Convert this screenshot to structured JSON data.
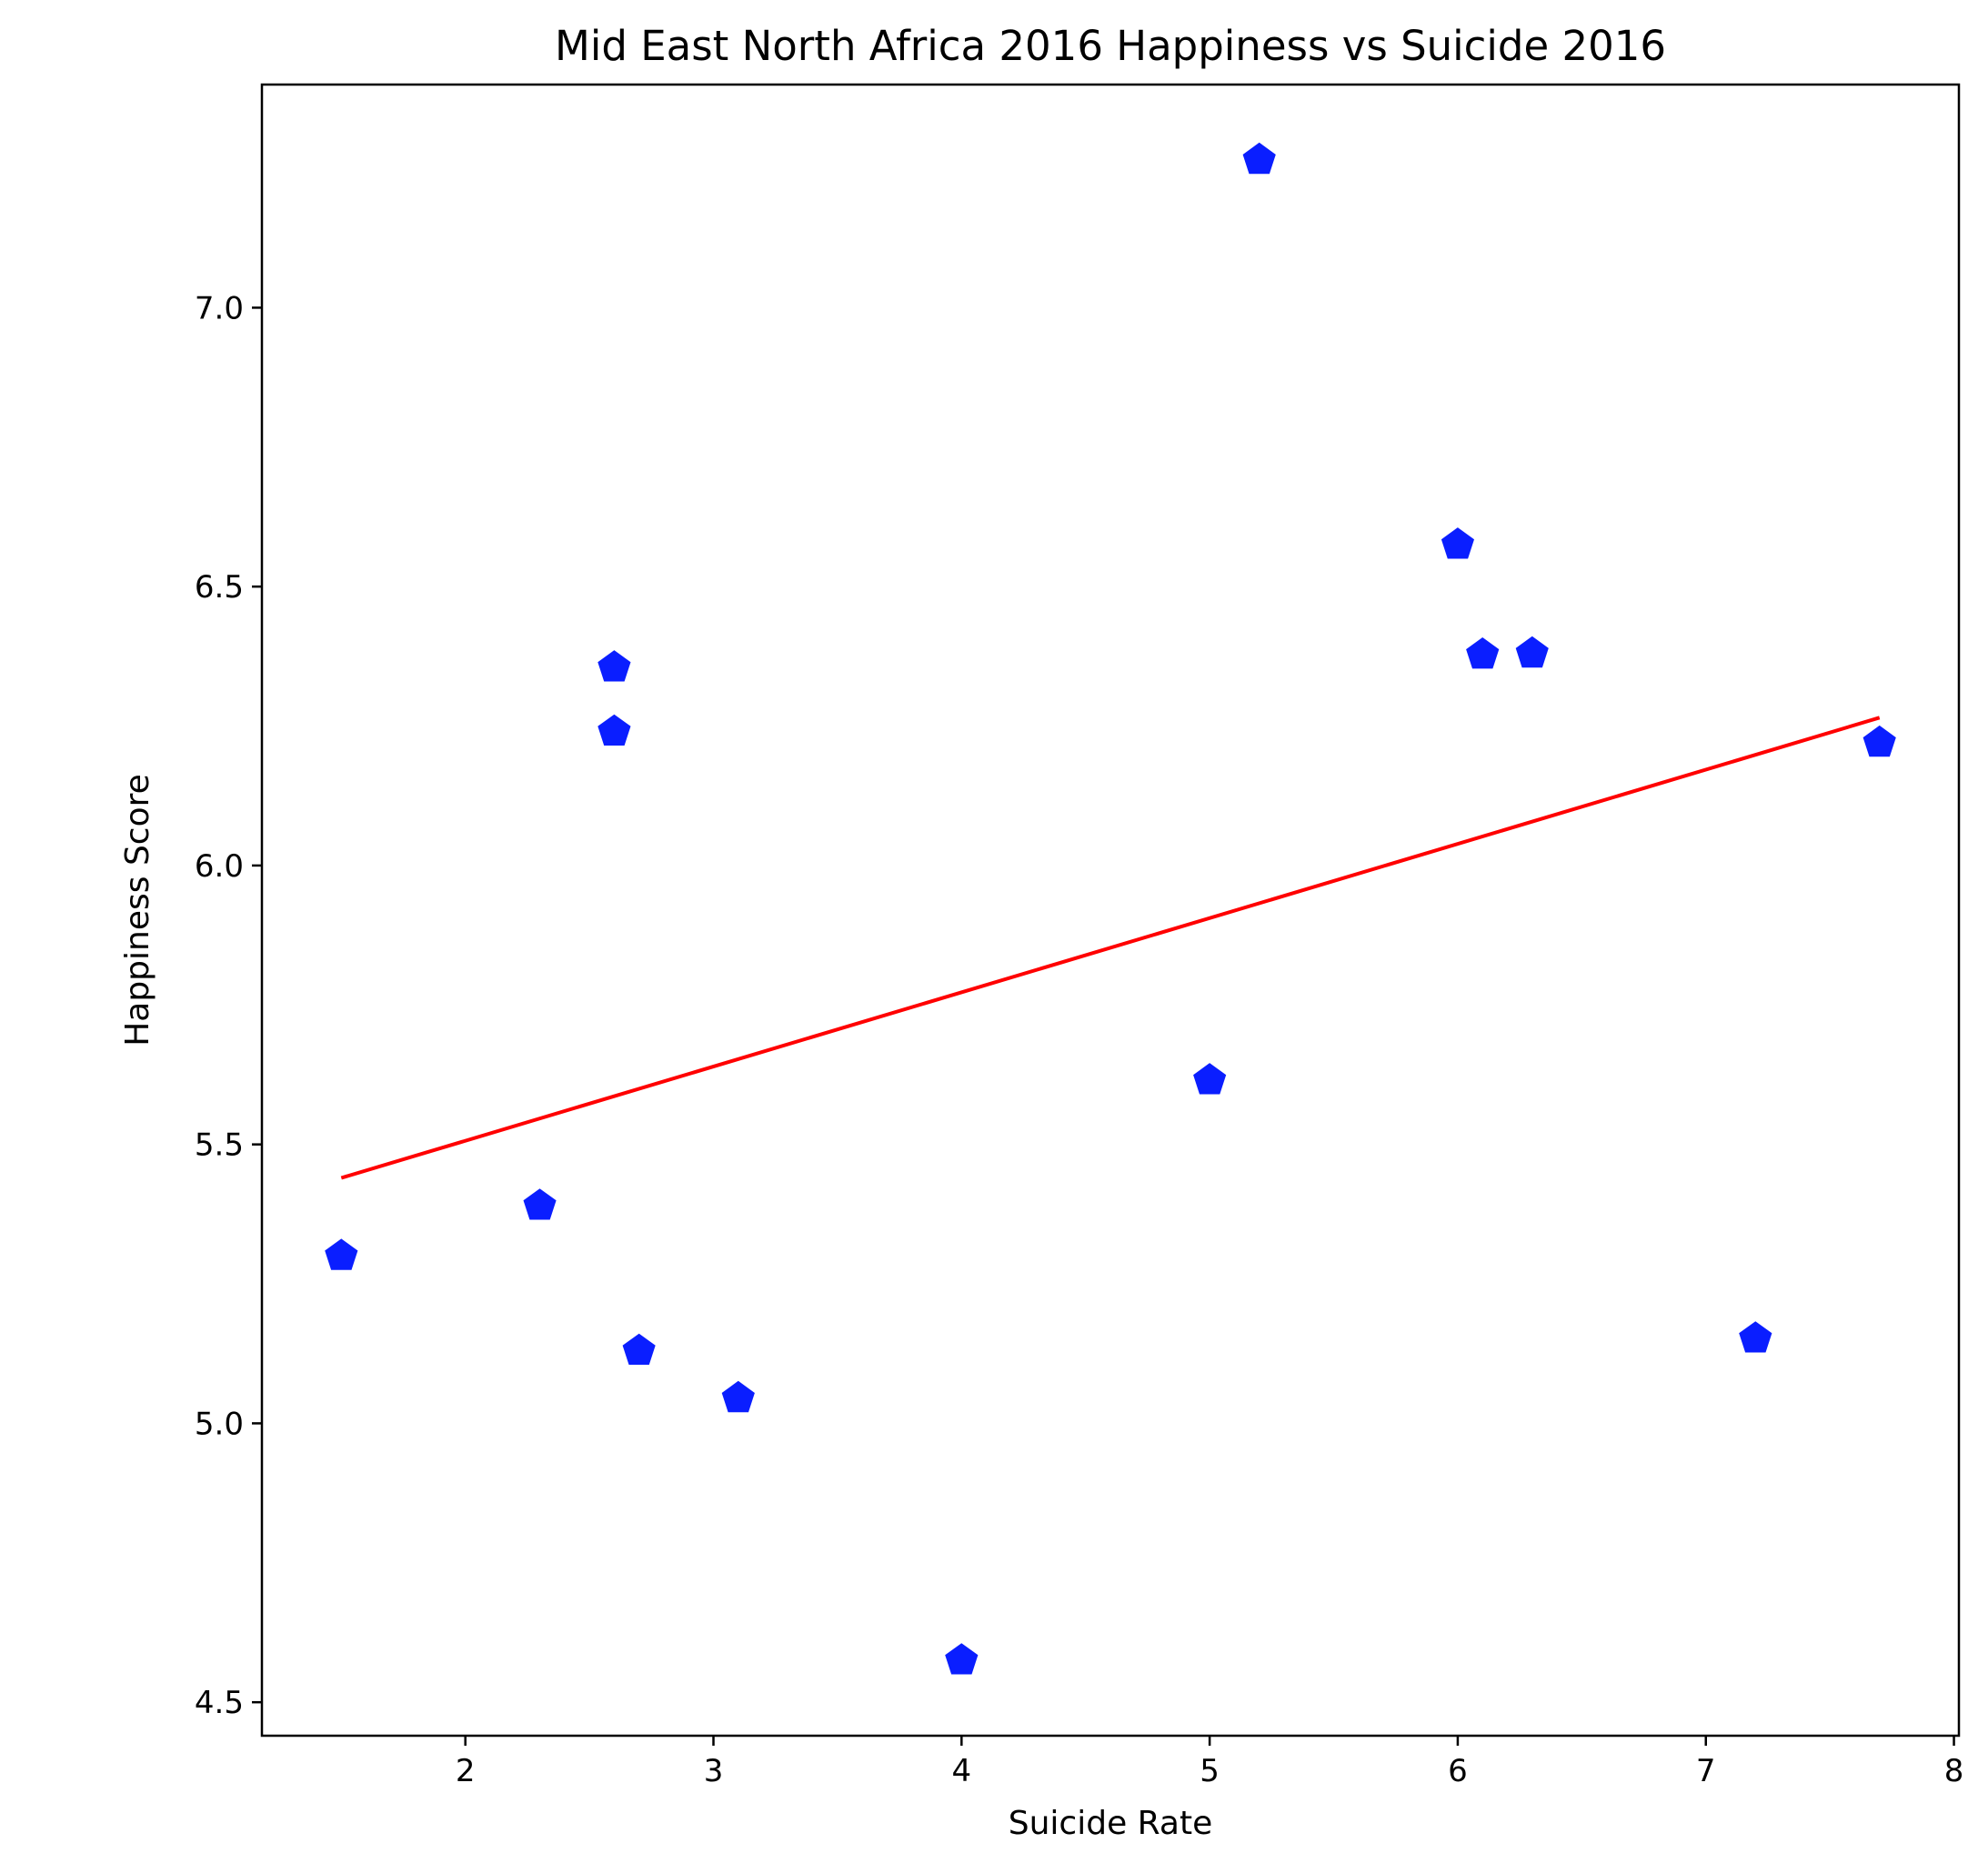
{
  "chart_data": {
    "type": "scatter",
    "title": "Mid East North Africa 2016 Happiness vs Suicide 2016",
    "xlabel": "Suicide Rate",
    "ylabel": "Happiness Score",
    "xlim": [
      1.18,
      8.02
    ],
    "ylim": [
      4.44,
      7.4
    ],
    "x_ticks": [
      2,
      3,
      4,
      5,
      6,
      7,
      8
    ],
    "y_ticks": [
      4.5,
      5.0,
      5.5,
      6.0,
      6.5,
      7.0
    ],
    "x_tick_labels": [
      "2",
      "3",
      "4",
      "5",
      "6",
      "7",
      "8"
    ],
    "y_tick_labels": [
      "4.5",
      "5.0",
      "5.5",
      "6.0",
      "6.5",
      "7.0"
    ],
    "grid": false,
    "series": [
      {
        "marker": "pentagon",
        "color": "#0a1eff",
        "points": [
          {
            "x": 1.5,
            "y": 5.3
          },
          {
            "x": 2.3,
            "y": 5.39
          },
          {
            "x": 2.6,
            "y": 6.355
          },
          {
            "x": 2.6,
            "y": 6.24
          },
          {
            "x": 2.7,
            "y": 5.13
          },
          {
            "x": 3.1,
            "y": 5.045
          },
          {
            "x": 4.0,
            "y": 4.575
          },
          {
            "x": 5.0,
            "y": 5.615
          },
          {
            "x": 5.2,
            "y": 7.265
          },
          {
            "x": 6.0,
            "y": 6.575
          },
          {
            "x": 6.1,
            "y": 6.378
          },
          {
            "x": 6.3,
            "y": 6.38
          },
          {
            "x": 7.2,
            "y": 5.152
          },
          {
            "x": 7.7,
            "y": 6.22
          }
        ]
      }
    ],
    "trend_line": {
      "color": "#ff0000",
      "x": [
        1.5,
        7.7
      ],
      "y": [
        5.44,
        6.265
      ]
    }
  }
}
